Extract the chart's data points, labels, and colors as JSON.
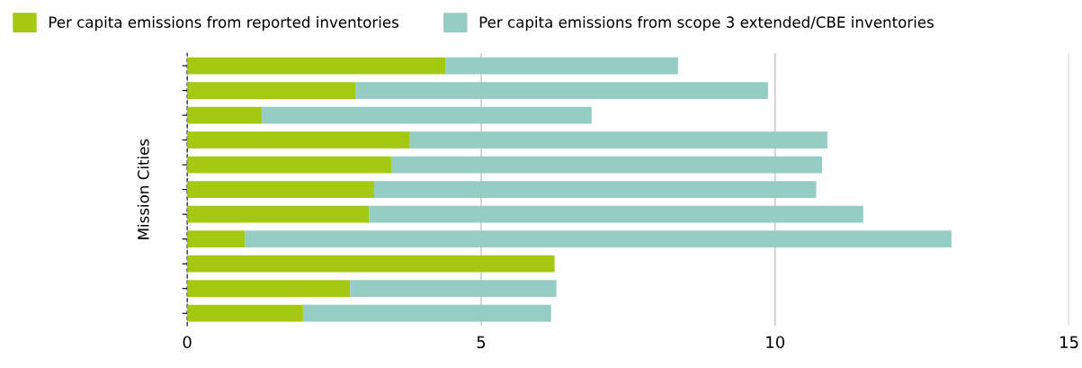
{
  "chart_data": {
    "type": "bar",
    "orientation": "horizontal",
    "stacked": true,
    "ylabel": "Mission Cities",
    "categories": [
      null,
      null,
      null,
      null,
      null,
      null,
      null,
      null,
      null,
      null,
      null
    ],
    "series": [
      {
        "name": "Per capita emissions from reported inventories",
        "color": "#a5c913",
        "values": [
          4.39,
          2.86,
          1.27,
          3.79,
          3.47,
          3.18,
          3.09,
          0.98,
          6.25,
          2.77,
          1.97
        ]
      },
      {
        "name": "Per capita emissions from scope 3 extended/CBE inventories",
        "color": "#95cdc5",
        "values": [
          3.96,
          7.02,
          5.61,
          7.1,
          7.33,
          7.52,
          8.41,
          12.02,
          null,
          3.51,
          4.22
        ]
      }
    ],
    "xlim": [
      0,
      15
    ],
    "xticks": [
      0,
      5,
      10,
      15
    ],
    "grid": "x",
    "legend": "top"
  }
}
